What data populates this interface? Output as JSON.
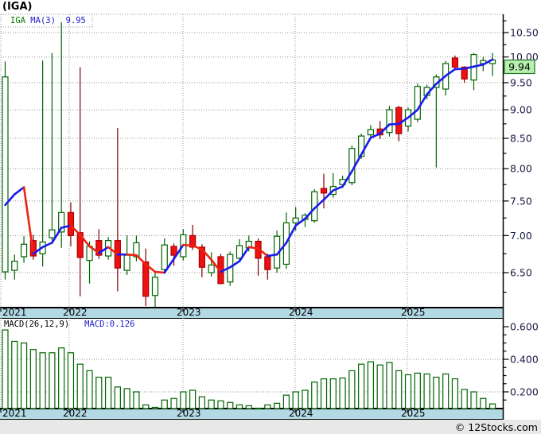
{
  "title": "(IGA)",
  "footer": {
    "credit": "© 12Stocks.com"
  },
  "price_pane": {
    "legend": {
      "symbol": "IGA",
      "ma_label": "MA(3)",
      "ma_value": "9.95"
    },
    "last_price": "9.94"
  },
  "macd_pane": {
    "legend_label": "MACD(26,12,9)",
    "legend_value": "MACD:0.126"
  },
  "x_axis": {
    "years": [
      "2021",
      "2022",
      "2023",
      "2024",
      "2025"
    ]
  },
  "colors": {
    "up": "#006400",
    "down_fill": "#ee1111",
    "down_stroke": "#aa0000",
    "down_wick": "#7b0000",
    "ma_up": "#1a1aee",
    "ma_down": "#ee2211",
    "band": "#b3d9e5",
    "grid": "#909090",
    "axis_text": "#1b1b4a",
    "legend_green": "#007700",
    "legend_blue": "#2020cc",
    "last_price_bg": "#b7f0ae",
    "last_price_border": "#267326",
    "footer_bg": "#e8e8e8"
  },
  "chart_data": [
    {
      "type": "candlestick",
      "pane": "price",
      "title": "IGA monthly candlesticks with MA(3)",
      "y_scale": "log",
      "ylim": [
        6.07,
        10.72
      ],
      "y_gridlines": [
        6.5,
        7.0,
        7.5,
        8.0,
        8.5,
        9.0,
        9.5,
        10.0,
        10.5
      ],
      "legend": [
        "IGA",
        "MA(3)"
      ],
      "months": [
        "2021-06",
        "2021-07",
        "2021-08",
        "2021-09",
        "2021-10",
        "2021-11",
        "2021-12",
        "2022-01",
        "2022-02",
        "2022-03",
        "2022-04",
        "2022-05",
        "2022-06",
        "2022-07",
        "2022-08",
        "2022-09",
        "2022-10",
        "2022-11",
        "2022-12",
        "2023-01",
        "2023-02",
        "2023-03",
        "2023-04",
        "2023-05",
        "2023-06",
        "2023-07",
        "2023-08",
        "2023-09",
        "2023-10",
        "2023-11",
        "2023-12",
        "2024-01",
        "2024-02",
        "2024-03",
        "2024-04",
        "2024-05",
        "2024-06",
        "2024-07",
        "2024-08",
        "2024-09",
        "2024-10",
        "2024-11",
        "2024-12",
        "2025-01",
        "2025-02",
        "2025-03",
        "2025-04",
        "2025-05",
        "2025-06",
        "2025-07",
        "2025-08",
        "2025-09",
        "2025-10"
      ],
      "ohlc": [
        [
          6.51,
          9.91,
          6.41,
          9.61
        ],
        [
          6.53,
          6.74,
          6.41,
          6.65
        ],
        [
          6.71,
          6.99,
          6.63,
          6.88
        ],
        [
          6.93,
          7.01,
          6.67,
          6.72
        ],
        [
          6.75,
          9.93,
          6.58,
          6.91
        ],
        [
          6.97,
          10.08,
          6.93,
          7.08
        ],
        [
          7.05,
          10.72,
          6.83,
          7.33
        ],
        [
          7.33,
          7.48,
          6.85,
          7.0
        ],
        [
          7.04,
          9.8,
          6.2,
          6.7
        ],
        [
          6.66,
          6.92,
          6.36,
          6.85
        ],
        [
          6.93,
          7.09,
          6.68,
          6.73
        ],
        [
          6.72,
          6.98,
          6.67,
          6.93
        ],
        [
          6.93,
          8.68,
          6.26,
          6.56
        ],
        [
          6.53,
          7.0,
          6.47,
          6.73
        ],
        [
          6.71,
          7.0,
          6.65,
          6.9
        ],
        [
          6.64,
          6.82,
          6.08,
          6.2
        ],
        [
          6.21,
          6.51,
          6.07,
          6.44
        ],
        [
          6.54,
          6.96,
          6.49,
          6.87
        ],
        [
          6.85,
          6.89,
          6.59,
          6.73
        ],
        [
          6.71,
          7.09,
          6.66,
          7.01
        ],
        [
          7.0,
          7.15,
          6.8,
          6.84
        ],
        [
          6.84,
          6.88,
          6.44,
          6.57
        ],
        [
          6.5,
          6.77,
          6.45,
          6.6
        ],
        [
          6.71,
          6.75,
          6.35,
          6.36
        ],
        [
          6.38,
          6.78,
          6.33,
          6.74
        ],
        [
          6.69,
          6.95,
          6.64,
          6.86
        ],
        [
          6.83,
          7.0,
          6.78,
          6.92
        ],
        [
          6.92,
          6.96,
          6.46,
          6.69
        ],
        [
          6.71,
          6.75,
          6.41,
          6.54
        ],
        [
          6.56,
          7.07,
          6.5,
          6.99
        ],
        [
          6.61,
          7.33,
          6.55,
          7.18
        ],
        [
          7.18,
          7.41,
          7.07,
          7.25
        ],
        [
          7.23,
          7.32,
          7.12,
          7.29
        ],
        [
          7.21,
          7.68,
          7.18,
          7.64
        ],
        [
          7.69,
          7.92,
          7.39,
          7.62
        ],
        [
          7.6,
          7.93,
          7.55,
          7.72
        ],
        [
          7.75,
          7.89,
          7.7,
          7.83
        ],
        [
          7.78,
          8.38,
          7.74,
          8.33
        ],
        [
          8.2,
          8.58,
          8.16,
          8.54
        ],
        [
          8.56,
          8.73,
          8.5,
          8.65
        ],
        [
          8.66,
          8.8,
          8.49,
          8.56
        ],
        [
          8.6,
          9.07,
          8.53,
          9.0
        ],
        [
          9.04,
          9.07,
          8.45,
          8.58
        ],
        [
          8.71,
          9.04,
          8.62,
          9.0
        ],
        [
          8.83,
          9.48,
          8.78,
          9.43
        ],
        [
          9.26,
          9.46,
          9.19,
          9.41
        ],
        [
          9.41,
          9.66,
          8.02,
          9.61
        ],
        [
          9.38,
          9.92,
          9.26,
          9.87
        ],
        [
          9.98,
          10.03,
          9.75,
          9.8
        ],
        [
          9.8,
          9.82,
          9.5,
          9.57
        ],
        [
          9.55,
          10.08,
          9.36,
          10.05
        ],
        [
          9.87,
          10.0,
          9.72,
          9.93
        ],
        [
          9.87,
          10.08,
          9.63,
          9.94
        ]
      ],
      "ma3": [
        7.44,
        7.6,
        7.71,
        6.75,
        6.84,
        6.9,
        7.11,
        7.14,
        7.01,
        6.85,
        6.76,
        6.84,
        6.74,
        6.74,
        6.73,
        6.61,
        6.51,
        6.5,
        6.68,
        6.87,
        6.86,
        6.81,
        6.67,
        6.51,
        6.57,
        6.65,
        6.84,
        6.82,
        6.72,
        6.74,
        6.9,
        7.14,
        7.24,
        7.39,
        7.52,
        7.66,
        7.72,
        7.96,
        8.23,
        8.51,
        8.58,
        8.74,
        8.75,
        8.86,
        9.0,
        9.28,
        9.48,
        9.63,
        9.76,
        9.77,
        9.81,
        9.85,
        9.95
      ],
      "last_close": 9.94,
      "ma3_last": 9.95
    },
    {
      "type": "bar",
      "pane": "macd",
      "title": "MACD(26,12,9)",
      "ylim": [
        0.0975,
        0.654
      ],
      "y_gridlines": [
        0.2,
        0.4
      ],
      "values": [
        0.58,
        0.51,
        0.5,
        0.46,
        0.44,
        0.44,
        0.47,
        0.44,
        0.37,
        0.33,
        0.29,
        0.29,
        0.23,
        0.22,
        0.2,
        0.12,
        0.105,
        0.15,
        0.16,
        0.2,
        0.21,
        0.17,
        0.15,
        0.145,
        0.135,
        0.12,
        0.115,
        0.1,
        0.12,
        0.13,
        0.18,
        0.2,
        0.21,
        0.26,
        0.28,
        0.28,
        0.285,
        0.33,
        0.37,
        0.385,
        0.365,
        0.38,
        0.33,
        0.305,
        0.315,
        0.31,
        0.29,
        0.31,
        0.28,
        0.215,
        0.2,
        0.16,
        0.126
      ],
      "last_value": 0.126
    }
  ]
}
